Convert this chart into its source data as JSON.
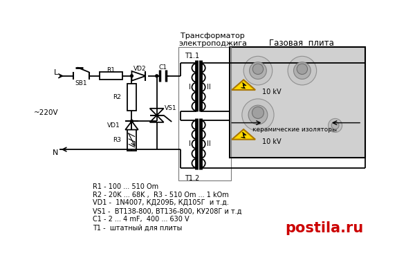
{
  "title_transformer": "Трансформатор\nэлектроподжига",
  "title_stove": "Газовая  плита",
  "label_L": "L",
  "label_N": "N",
  "label_SB1": "SB1",
  "label_R1": "R1",
  "label_R2": "R2",
  "label_R3": "R3",
  "label_VD1": "VD1",
  "label_VD2": "VD2",
  "label_VS1": "VS1",
  "label_C1": "C1",
  "label_T11": "T1.1",
  "label_T12": "T1.2",
  "label_I1": "I",
  "label_II1": "II",
  "label_I2": "I",
  "label_II2": "II",
  "label_10kV": "10 kV",
  "label_ceramic": "керамические изоляторы",
  "label_220V": "~220V",
  "component_list": [
    "R1 - 100 ... 510 Om",
    "R2 - 20K ... 68K ,  R3 - 510 Om ... 1 kOm",
    "VD1 -  1N4007, КД209Б, КД105Г  и т.д.",
    "VS1 -  ВТ138-800, ВТ136-800, КУ208Г и т.д",
    "C1 - 2 ... 4 mF,  400 ... 630 V",
    "T1 -  штатный для плиты"
  ],
  "bg_color": "#ffffff",
  "line_color": "#000000",
  "stove_bg": "#d0d0d0",
  "stove_border": "#000000",
  "warning_yellow": "#FFD700",
  "text_color": "#000000",
  "watermark_color": "#cc0000",
  "watermark_text": "postila.ru",
  "trans_box_color": "#777777"
}
